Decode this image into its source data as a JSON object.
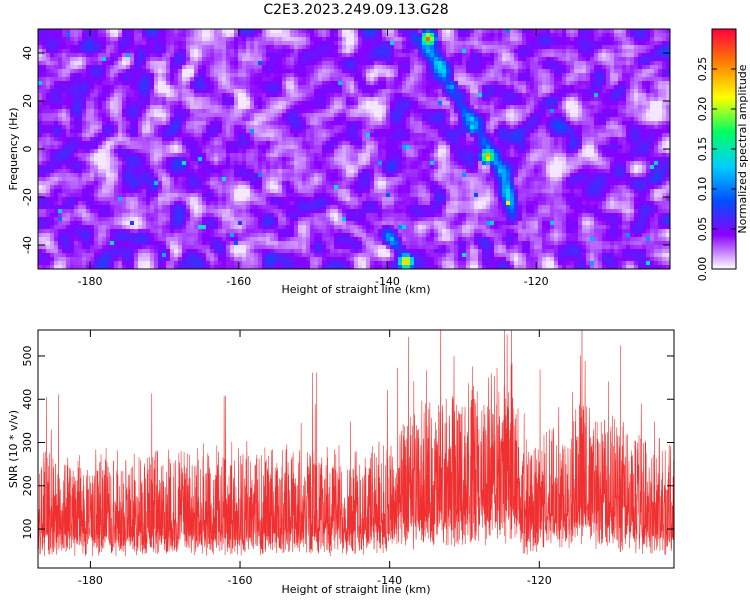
{
  "figure": {
    "title": "C2E3.2023.249.09.13.G28"
  },
  "chart_data": [
    {
      "type": "heatmap",
      "xlabel": "Height of straight line (km)",
      "ylabel": "Frequency (Hz)",
      "xlim": [
        -187,
        -102
      ],
      "ylim": [
        -50,
        50
      ],
      "x_ticks": [
        -180,
        -160,
        -140,
        -120
      ],
      "y_ticks": [
        -40,
        -20,
        0,
        20,
        40
      ],
      "colorbar": {
        "label": "Normalized spectral amplitude",
        "range": [
          0.0,
          0.3
        ],
        "ticks": [
          "0.00",
          "0.05",
          "0.10",
          "0.15",
          "0.20",
          "0.25"
        ],
        "colors": [
          "#ffffff",
          "#8a00ff",
          "#0050ff",
          "#00d0ff",
          "#00ff60",
          "#ffff00",
          "#ff8000",
          "#ff0040"
        ]
      },
      "background_level": 0.04,
      "ridge": {
        "points": [
          [
            -136,
            47
          ],
          [
            -133,
            35
          ],
          [
            -131,
            22
          ],
          [
            -128,
            10
          ],
          [
            -126,
            -2
          ],
          [
            -124,
            -15
          ],
          [
            -123,
            -28
          ]
        ],
        "lower_segment": [
          [
            -140,
            -35
          ],
          [
            -137.5,
            -47
          ]
        ],
        "peaks": [
          {
            "x": -134.5,
            "y": 46,
            "value": 0.28
          },
          {
            "x": -126.5,
            "y": -3,
            "value": 0.27
          },
          {
            "x": -137.5,
            "y": -47,
            "value": 0.28
          },
          {
            "x": -128.5,
            "y": 9,
            "value": 0.15
          },
          {
            "x": -131.5,
            "y": 26,
            "value": 0.13
          }
        ]
      }
    },
    {
      "type": "line",
      "xlabel": "Height of straight line (km)",
      "ylabel": "SNR (10 * v/v)",
      "xlim": [
        -187,
        -102
      ],
      "ylim": [
        10,
        560
      ],
      "x_ticks": [
        -180,
        -160,
        -140,
        -120
      ],
      "y_ticks": [
        100,
        200,
        300,
        400,
        500
      ],
      "color": "#f03030",
      "baseline_envelope": [
        {
          "x": -187,
          "mean": 140
        },
        {
          "x": -160,
          "mean": 145
        },
        {
          "x": -142,
          "mean": 150
        },
        {
          "x": -135,
          "mean": 200
        },
        {
          "x": -127,
          "mean": 230
        },
        {
          "x": -124,
          "mean": 260
        },
        {
          "x": -122,
          "mean": 150
        },
        {
          "x": -115,
          "mean": 210
        },
        {
          "x": -108,
          "mean": 170
        },
        {
          "x": -102,
          "mean": 150
        }
      ]
    }
  ]
}
